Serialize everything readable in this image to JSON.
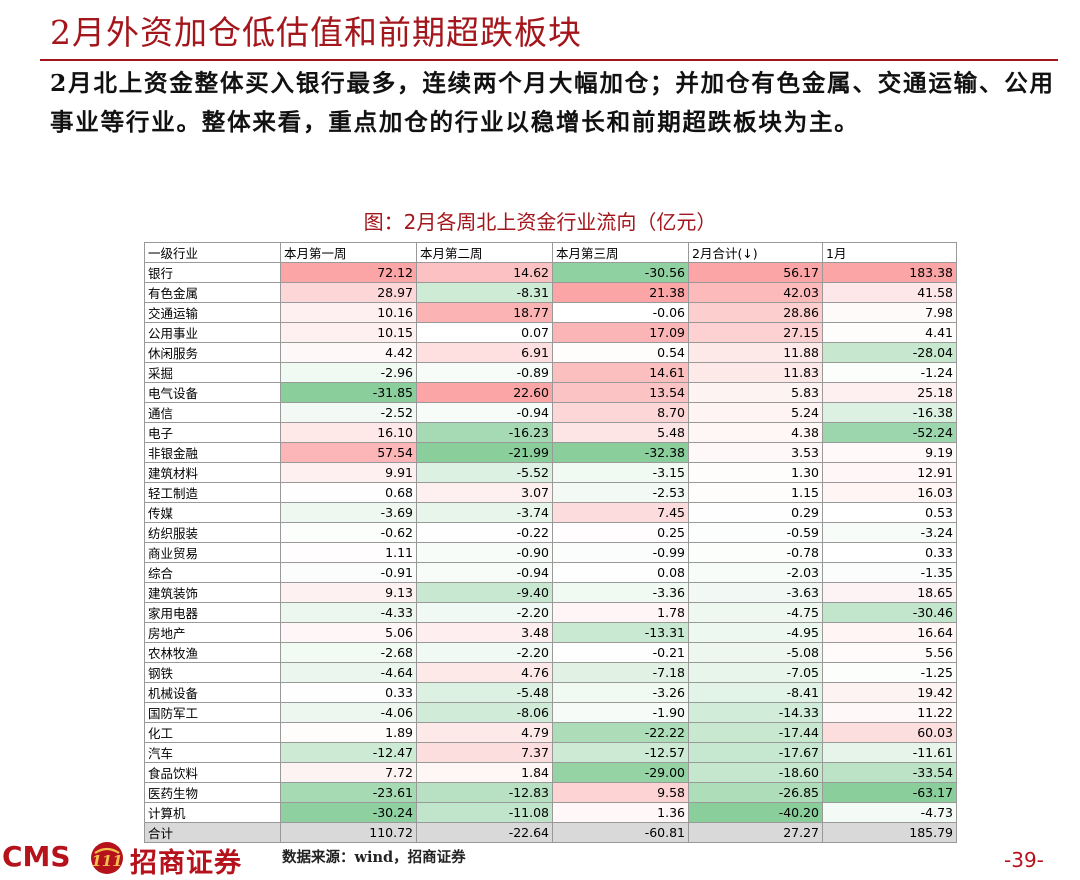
{
  "title": "2月外资加仓低估值和前期超跌板块",
  "summary": "2月北上资金整体买入银行最多，连续两个月大幅加仓；并加仓有色金属、交通运输、公用事业等行业。整体来看，重点加仓的行业以稳增长和前期超跌板块为主。",
  "figure_title": "图：2月各周北上资金行业流向（亿元）",
  "table": {
    "headers": [
      "一级行业",
      "本月第一周",
      "本月第二周",
      "本月第三周",
      "2月合计(↓)",
      "1月"
    ],
    "rows": [
      {
        "name": "银行",
        "values": [
          "72.12",
          "14.62",
          "-30.56",
          "56.17",
          "183.38"
        ]
      },
      {
        "name": "有色金属",
        "values": [
          "28.97",
          "-8.31",
          "21.38",
          "42.03",
          "41.58"
        ]
      },
      {
        "name": "交通运输",
        "values": [
          "10.16",
          "18.77",
          "-0.06",
          "28.86",
          "7.98"
        ]
      },
      {
        "name": "公用事业",
        "values": [
          "10.15",
          "0.07",
          "17.09",
          "27.15",
          "4.41"
        ]
      },
      {
        "name": "休闲服务",
        "values": [
          "4.42",
          "6.91",
          "0.54",
          "11.88",
          "-28.04"
        ]
      },
      {
        "name": "采掘",
        "values": [
          "-2.96",
          "-0.89",
          "14.61",
          "11.83",
          "-1.24"
        ]
      },
      {
        "name": "电气设备",
        "values": [
          "-31.85",
          "22.60",
          "13.54",
          "5.83",
          "25.18"
        ]
      },
      {
        "name": "通信",
        "values": [
          "-2.52",
          "-0.94",
          "8.70",
          "5.24",
          "-16.38"
        ]
      },
      {
        "name": "电子",
        "values": [
          "16.10",
          "-16.23",
          "5.48",
          "4.38",
          "-52.24"
        ]
      },
      {
        "name": "非银金融",
        "values": [
          "57.54",
          "-21.99",
          "-32.38",
          "3.53",
          "9.19"
        ]
      },
      {
        "name": "建筑材料",
        "values": [
          "9.91",
          "-5.52",
          "-3.15",
          "1.30",
          "12.91"
        ]
      },
      {
        "name": "轻工制造",
        "values": [
          "0.68",
          "3.07",
          "-2.53",
          "1.15",
          "16.03"
        ]
      },
      {
        "name": "传媒",
        "values": [
          "-3.69",
          "-3.74",
          "7.45",
          "0.29",
          "0.53"
        ]
      },
      {
        "name": "纺织服装",
        "values": [
          "-0.62",
          "-0.22",
          "0.25",
          "-0.59",
          "-3.24"
        ]
      },
      {
        "name": "商业贸易",
        "values": [
          "1.11",
          "-0.90",
          "-0.99",
          "-0.78",
          "0.33"
        ]
      },
      {
        "name": "综合",
        "values": [
          "-0.91",
          "-0.94",
          "0.08",
          "-2.03",
          "-1.35"
        ]
      },
      {
        "name": "建筑装饰",
        "values": [
          "9.13",
          "-9.40",
          "-3.36",
          "-3.63",
          "18.65"
        ]
      },
      {
        "name": "家用电器",
        "values": [
          "-4.33",
          "-2.20",
          "1.78",
          "-4.75",
          "-30.46"
        ]
      },
      {
        "name": "房地产",
        "values": [
          "5.06",
          "3.48",
          "-13.31",
          "-4.95",
          "16.64"
        ]
      },
      {
        "name": "农林牧渔",
        "values": [
          "-2.68",
          "-2.20",
          "-0.21",
          "-5.08",
          "5.56"
        ]
      },
      {
        "name": "钢铁",
        "values": [
          "-4.64",
          "4.76",
          "-7.18",
          "-7.05",
          "-1.25"
        ]
      },
      {
        "name": "机械设备",
        "values": [
          "0.33",
          "-5.48",
          "-3.26",
          "-8.41",
          "19.42"
        ]
      },
      {
        "name": "国防军工",
        "values": [
          "-4.06",
          "-8.06",
          "-1.90",
          "-14.33",
          "11.22"
        ]
      },
      {
        "name": "化工",
        "values": [
          "1.89",
          "4.79",
          "-22.22",
          "-17.44",
          "60.03"
        ]
      },
      {
        "name": "汽车",
        "values": [
          "-12.47",
          "7.37",
          "-12.57",
          "-17.67",
          "-11.61"
        ]
      },
      {
        "name": "食品饮料",
        "values": [
          "7.72",
          "1.84",
          "-29.00",
          "-18.60",
          "-33.54"
        ]
      },
      {
        "name": "医药生物",
        "values": [
          "-23.61",
          "-12.83",
          "9.58",
          "-26.85",
          "-63.17"
        ]
      },
      {
        "name": "计算机",
        "values": [
          "-30.24",
          "-11.08",
          "1.36",
          "-40.20",
          "-4.73"
        ]
      }
    ],
    "total": {
      "name": "合计",
      "values": [
        "110.72",
        "-22.64",
        "-60.81",
        "27.27",
        "185.79"
      ]
    }
  },
  "heat_colors": {
    "positive": "#f8696b",
    "negative": "#63be7b",
    "neutral": "#ffffff",
    "total_row": "#d9d9d9"
  },
  "footer": {
    "logo_text": "CMS",
    "logo_mark_text": "111",
    "broker_name": "招商证券",
    "source": "数据来源：wind，招商证券",
    "page_number": "-39-"
  },
  "brand_color": "#a3161b"
}
